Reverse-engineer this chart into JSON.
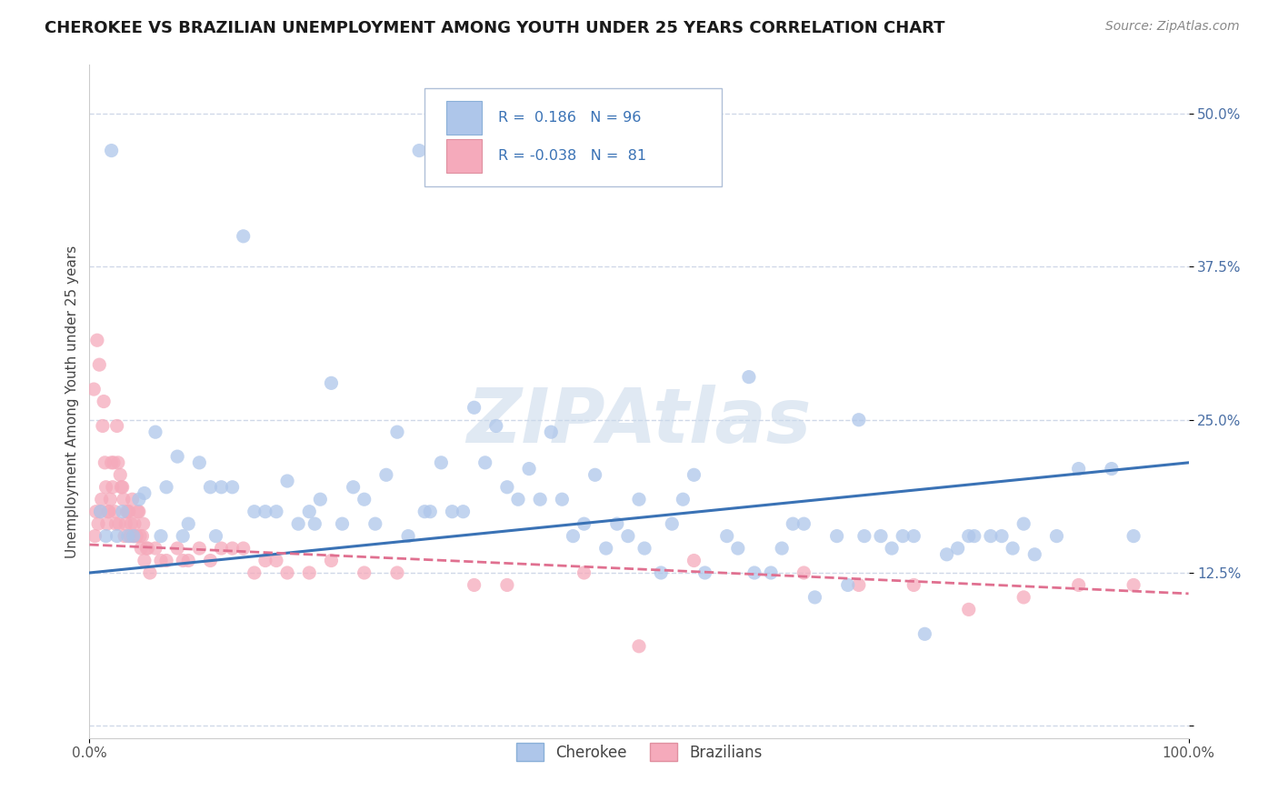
{
  "title": "CHEROKEE VS BRAZILIAN UNEMPLOYMENT AMONG YOUTH UNDER 25 YEARS CORRELATION CHART",
  "source": "Source: ZipAtlas.com",
  "ylabel": "Unemployment Among Youth under 25 years",
  "xlim": [
    0.0,
    100.0
  ],
  "ylim": [
    -0.01,
    0.54
  ],
  "yticks": [
    0.0,
    0.125,
    0.25,
    0.375,
    0.5
  ],
  "ytick_labels": [
    "",
    "12.5%",
    "25.0%",
    "37.5%",
    "50.0%"
  ],
  "xticks": [
    0.0,
    100.0
  ],
  "xtick_labels": [
    "0.0%",
    "100.0%"
  ],
  "r_cherokee": 0.186,
  "n_cherokee": 96,
  "r_brazilian": -0.038,
  "n_brazilian": 81,
  "cherokee_color": "#aec6ea",
  "brazilian_color": "#f5aabb",
  "cherokee_line_color": "#3a72b5",
  "brazilian_line_color": "#e07090",
  "watermark": "ZIPAtlas",
  "watermark_color": "#c8d8ea",
  "cherokee_x": [
    2.0,
    14.0,
    30.0,
    22.0,
    8.0,
    5.0,
    18.0,
    35.0,
    42.0,
    50.0,
    60.0,
    70.0,
    80.0,
    90.0,
    95.0,
    3.0,
    6.0,
    10.0,
    15.0,
    20.0,
    25.0,
    32.0,
    38.0,
    45.0,
    55.0,
    65.0,
    75.0,
    85.0,
    4.0,
    7.0,
    12.0,
    17.0,
    28.0,
    33.0,
    40.0,
    48.0,
    58.0,
    68.0,
    78.0,
    88.0,
    1.5,
    9.0,
    16.0,
    24.0,
    36.0,
    44.0,
    52.0,
    62.0,
    72.0,
    82.0,
    2.5,
    11.0,
    19.0,
    27.0,
    34.0,
    41.0,
    49.0,
    59.0,
    69.0,
    79.0,
    3.5,
    13.0,
    21.0,
    29.0,
    37.0,
    46.0,
    54.0,
    64.0,
    74.0,
    84.0,
    1.0,
    8.5,
    23.0,
    31.0,
    39.0,
    47.0,
    56.0,
    66.0,
    76.0,
    86.0,
    4.5,
    26.0,
    43.0,
    53.0,
    63.0,
    73.0,
    83.0,
    93.0,
    6.5,
    11.5,
    20.5,
    30.5,
    50.5,
    60.5,
    70.5,
    80.5
  ],
  "cherokee_y": [
    0.47,
    0.4,
    0.47,
    0.28,
    0.22,
    0.19,
    0.2,
    0.26,
    0.24,
    0.185,
    0.285,
    0.25,
    0.155,
    0.21,
    0.155,
    0.175,
    0.24,
    0.215,
    0.175,
    0.175,
    0.185,
    0.215,
    0.195,
    0.165,
    0.205,
    0.165,
    0.155,
    0.165,
    0.155,
    0.195,
    0.195,
    0.175,
    0.24,
    0.175,
    0.21,
    0.165,
    0.155,
    0.155,
    0.14,
    0.155,
    0.155,
    0.165,
    0.175,
    0.195,
    0.215,
    0.155,
    0.125,
    0.125,
    0.155,
    0.155,
    0.155,
    0.195,
    0.165,
    0.205,
    0.175,
    0.185,
    0.155,
    0.145,
    0.115,
    0.145,
    0.155,
    0.195,
    0.185,
    0.155,
    0.245,
    0.205,
    0.185,
    0.165,
    0.155,
    0.145,
    0.175,
    0.155,
    0.165,
    0.175,
    0.185,
    0.145,
    0.125,
    0.105,
    0.075,
    0.14,
    0.185,
    0.165,
    0.185,
    0.165,
    0.145,
    0.145,
    0.155,
    0.21,
    0.155,
    0.155,
    0.165,
    0.175,
    0.145,
    0.125,
    0.155,
    0.155
  ],
  "brazilian_x": [
    0.5,
    1.0,
    1.5,
    2.0,
    2.5,
    3.0,
    3.5,
    4.0,
    4.5,
    5.0,
    0.8,
    1.2,
    1.7,
    2.2,
    2.8,
    3.2,
    3.8,
    4.2,
    4.8,
    5.5,
    0.6,
    1.1,
    1.6,
    2.1,
    2.6,
    3.1,
    3.6,
    4.1,
    4.6,
    5.2,
    6.0,
    7.0,
    8.0,
    9.0,
    10.0,
    12.0,
    14.0,
    16.0,
    18.0,
    20.0,
    0.4,
    0.7,
    0.9,
    1.3,
    1.4,
    1.8,
    1.9,
    2.3,
    2.4,
    2.7,
    2.9,
    3.3,
    3.4,
    3.7,
    3.9,
    4.3,
    4.4,
    4.7,
    4.9,
    5.3,
    6.5,
    8.5,
    11.0,
    15.0,
    22.0,
    28.0,
    35.0,
    45.0,
    55.0,
    65.0,
    75.0,
    85.0,
    90.0,
    95.0,
    13.0,
    17.0,
    25.0,
    38.0,
    50.0,
    70.0,
    80.0
  ],
  "brazilian_y": [
    0.155,
    0.175,
    0.195,
    0.215,
    0.245,
    0.195,
    0.175,
    0.155,
    0.175,
    0.135,
    0.165,
    0.245,
    0.175,
    0.215,
    0.205,
    0.155,
    0.165,
    0.155,
    0.155,
    0.125,
    0.175,
    0.185,
    0.165,
    0.195,
    0.215,
    0.185,
    0.175,
    0.165,
    0.155,
    0.145,
    0.145,
    0.135,
    0.145,
    0.135,
    0.145,
    0.145,
    0.145,
    0.135,
    0.125,
    0.125,
    0.275,
    0.315,
    0.295,
    0.265,
    0.215,
    0.175,
    0.185,
    0.175,
    0.165,
    0.165,
    0.195,
    0.165,
    0.175,
    0.155,
    0.185,
    0.155,
    0.175,
    0.145,
    0.165,
    0.145,
    0.135,
    0.135,
    0.135,
    0.125,
    0.135,
    0.125,
    0.115,
    0.125,
    0.135,
    0.125,
    0.115,
    0.105,
    0.115,
    0.115,
    0.145,
    0.135,
    0.125,
    0.115,
    0.065,
    0.115,
    0.095
  ],
  "title_fontsize": 13,
  "source_fontsize": 10,
  "label_fontsize": 11,
  "tick_fontsize": 11,
  "legend_fontsize": 12,
  "watermark_fontsize": 60,
  "background_color": "#ffffff",
  "grid_color": "#d0d8e8",
  "cherokee_line_start_y": 0.125,
  "cherokee_line_end_y": 0.215,
  "brazilian_line_start_y": 0.148,
  "brazilian_line_end_y": 0.108
}
